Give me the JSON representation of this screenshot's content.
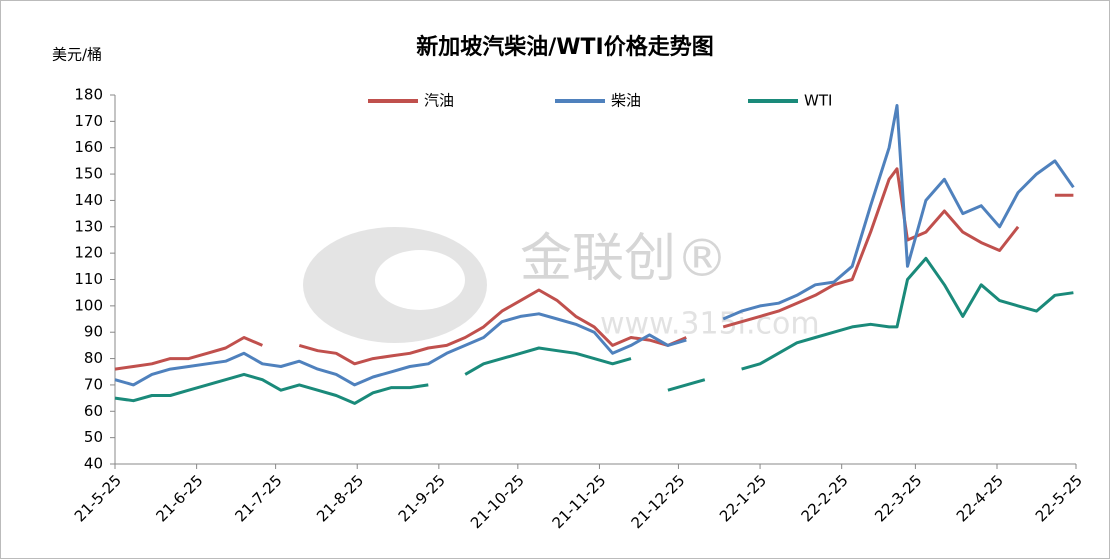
{
  "chart_data": {
    "type": "line",
    "title": "新加坡汽柴油/WTI价格走势图",
    "y_label": "美元/桶",
    "watermark": "金联创®",
    "watermark_url": "www.315i.com",
    "legend": "top",
    "x": [
      "21-5-25",
      "21-6-1",
      "21-6-8",
      "21-6-15",
      "21-6-22",
      "21-6-29",
      "21-7-6",
      "21-7-13",
      "21-7-20",
      "21-7-27",
      "21-8-3",
      "21-8-10",
      "21-8-17",
      "21-8-24",
      "21-8-31",
      "21-9-7",
      "21-9-14",
      "21-9-21",
      "21-9-28",
      "21-10-5",
      "21-10-12",
      "21-10-19",
      "21-10-26",
      "21-11-2",
      "21-11-9",
      "21-11-16",
      "21-11-23",
      "21-11-30",
      "21-12-7",
      "21-12-14",
      "21-12-21",
      "21-12-28",
      "22-1-4",
      "22-1-11",
      "22-1-18",
      "22-1-25",
      "22-2-1",
      "22-2-8",
      "22-2-15",
      "22-2-22",
      "22-3-1",
      "22-3-8",
      "22-3-15",
      "22-3-18",
      "22-3-22",
      "22-3-29",
      "22-4-5",
      "22-4-12",
      "22-4-19",
      "22-4-26",
      "22-5-3",
      "22-5-10",
      "22-5-17",
      "22-5-24"
    ],
    "series": [
      {
        "name": "汽油",
        "color": "#c0504d",
        "values": [
          76,
          77,
          78,
          80,
          80,
          82,
          84,
          88,
          85,
          null,
          85,
          83,
          82,
          78,
          80,
          81,
          82,
          84,
          85,
          88,
          92,
          98,
          102,
          106,
          102,
          96,
          92,
          85,
          88,
          87,
          85,
          88,
          null,
          92,
          94,
          96,
          98,
          101,
          104,
          108,
          110,
          128,
          148,
          152,
          125,
          128,
          136,
          128,
          124,
          121,
          130,
          null,
          142,
          142
        ]
      },
      {
        "name": "柴油",
        "color": "#4f81bd",
        "values": [
          72,
          70,
          74,
          76,
          77,
          78,
          79,
          82,
          78,
          77,
          79,
          76,
          74,
          70,
          73,
          75,
          77,
          78,
          82,
          85,
          88,
          94,
          96,
          97,
          95,
          93,
          90,
          82,
          85,
          89,
          85,
          87,
          null,
          95,
          98,
          100,
          101,
          104,
          108,
          109,
          115,
          138,
          160,
          176,
          115,
          140,
          148,
          135,
          138,
          130,
          143,
          150,
          155,
          145
        ]
      },
      {
        "name": "WTI",
        "color": "#1a8a7a",
        "values": [
          65,
          64,
          66,
          66,
          68,
          70,
          72,
          74,
          72,
          68,
          70,
          68,
          66,
          63,
          67,
          69,
          69,
          70,
          null,
          74,
          78,
          80,
          82,
          84,
          83,
          82,
          80,
          78,
          80,
          null,
          68,
          70,
          72,
          null,
          76,
          78,
          82,
          86,
          88,
          90,
          92,
          93,
          92,
          92,
          110,
          118,
          108,
          96,
          108,
          102,
          100,
          98,
          104,
          105
        ]
      }
    ],
    "xlim": [
      "21-5-25",
      "22-5-25"
    ],
    "xticks": [
      "21-5-25",
      "21-6-25",
      "21-7-25",
      "21-8-25",
      "21-9-25",
      "21-10-25",
      "21-11-25",
      "21-12-25",
      "22-1-25",
      "22-2-25",
      "22-3-25",
      "22-4-25",
      "22-5-25"
    ],
    "ylim": [
      40,
      180
    ],
    "yticks": [
      40,
      50,
      60,
      70,
      80,
      90,
      100,
      110,
      120,
      130,
      140,
      150,
      160,
      170,
      180
    ],
    "grid": false
  }
}
